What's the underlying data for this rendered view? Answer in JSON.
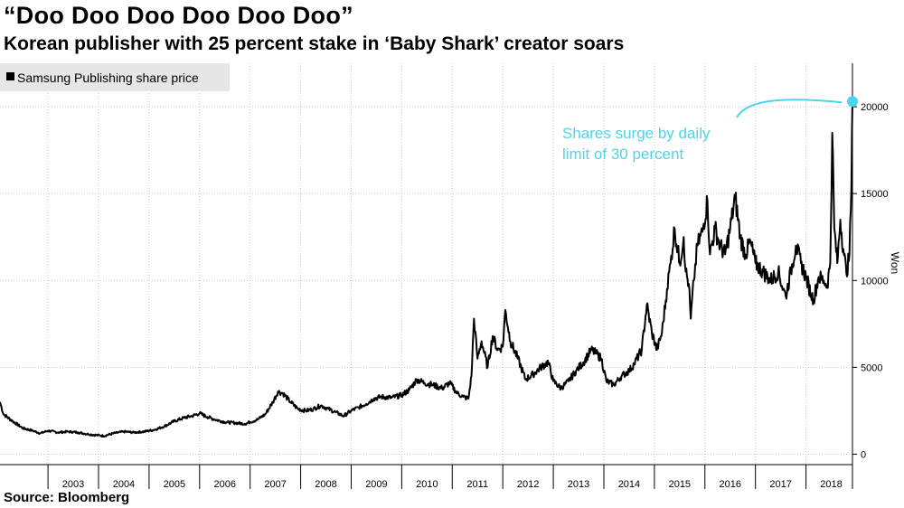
{
  "title": "“Doo Doo Doo Doo Doo Doo”",
  "subtitle": "Korean publisher with 25 percent stake in ‘Baby Shark’ creator soars",
  "source": "Source: Bloomberg",
  "colors": {
    "line": "#000000",
    "annotation": "#4fd3e6",
    "grid": "#c8c8c8",
    "legend_bg": "#e6e6e6"
  },
  "chart_data": {
    "type": "line",
    "title": "“Doo Doo Doo Doo Doo Doo”",
    "subtitle": "Korean publisher with 25 percent stake in ‘Baby Shark’ creator soars",
    "xlabel": "",
    "ylabel": "Won",
    "xlim": [
      2002.05,
      2018.92
    ],
    "ylim": [
      -600,
      22500
    ],
    "y_ticks": [
      0,
      5000,
      10000,
      15000,
      20000
    ],
    "x_tick_labels": [
      "2003",
      "2004",
      "2005",
      "2006",
      "2007",
      "2008",
      "2009",
      "2010",
      "2011",
      "2012",
      "2013",
      "2014",
      "2015",
      "2016",
      "2017",
      "2018"
    ],
    "legend": [
      "Samsung Publishing share price"
    ],
    "grid": true,
    "series": [
      {
        "name": "Samsung Publishing share price",
        "points": [
          [
            2002.05,
            3000
          ],
          [
            2002.12,
            2300
          ],
          [
            2002.3,
            1900
          ],
          [
            2002.5,
            1500
          ],
          [
            2002.7,
            1350
          ],
          [
            2002.85,
            1200
          ],
          [
            2003.0,
            1350
          ],
          [
            2003.2,
            1250
          ],
          [
            2003.4,
            1300
          ],
          [
            2003.6,
            1250
          ],
          [
            2003.8,
            1150
          ],
          [
            2003.95,
            1100
          ],
          [
            2004.1,
            1050
          ],
          [
            2004.3,
            1200
          ],
          [
            2004.5,
            1300
          ],
          [
            2004.7,
            1250
          ],
          [
            2004.9,
            1300
          ],
          [
            2005.1,
            1400
          ],
          [
            2005.3,
            1600
          ],
          [
            2005.5,
            1900
          ],
          [
            2005.7,
            2100
          ],
          [
            2005.85,
            2200
          ],
          [
            2006.0,
            2350
          ],
          [
            2006.15,
            2150
          ],
          [
            2006.3,
            2000
          ],
          [
            2006.5,
            1850
          ],
          [
            2006.7,
            1800
          ],
          [
            2006.9,
            1750
          ],
          [
            2007.0,
            1850
          ],
          [
            2007.15,
            2000
          ],
          [
            2007.3,
            2300
          ],
          [
            2007.45,
            3000
          ],
          [
            2007.55,
            3600
          ],
          [
            2007.65,
            3500
          ],
          [
            2007.8,
            3000
          ],
          [
            2007.95,
            2600
          ],
          [
            2008.1,
            2500
          ],
          [
            2008.25,
            2600
          ],
          [
            2008.4,
            2800
          ],
          [
            2008.55,
            2600
          ],
          [
            2008.7,
            2400
          ],
          [
            2008.85,
            2200
          ],
          [
            2009.0,
            2500
          ],
          [
            2009.15,
            2700
          ],
          [
            2009.3,
            2900
          ],
          [
            2009.45,
            3200
          ],
          [
            2009.6,
            3300
          ],
          [
            2009.8,
            3250
          ],
          [
            2010.0,
            3400
          ],
          [
            2010.15,
            3700
          ],
          [
            2010.3,
            4300
          ],
          [
            2010.45,
            4100
          ],
          [
            2010.6,
            4000
          ],
          [
            2010.8,
            3800
          ],
          [
            2010.95,
            4100
          ],
          [
            2011.1,
            3500
          ],
          [
            2011.22,
            3300
          ],
          [
            2011.32,
            3200
          ],
          [
            2011.38,
            4500
          ],
          [
            2011.43,
            7800
          ],
          [
            2011.5,
            5500
          ],
          [
            2011.58,
            6500
          ],
          [
            2011.7,
            5000
          ],
          [
            2011.8,
            6800
          ],
          [
            2011.9,
            6000
          ],
          [
            2012.0,
            6200
          ],
          [
            2012.05,
            8300
          ],
          [
            2012.15,
            6500
          ],
          [
            2012.3,
            5500
          ],
          [
            2012.45,
            4300
          ],
          [
            2012.6,
            4600
          ],
          [
            2012.75,
            5000
          ],
          [
            2012.9,
            5300
          ],
          [
            2013.0,
            4200
          ],
          [
            2013.15,
            3800
          ],
          [
            2013.3,
            4200
          ],
          [
            2013.45,
            4800
          ],
          [
            2013.6,
            5300
          ],
          [
            2013.75,
            6000
          ],
          [
            2013.85,
            5800
          ],
          [
            2013.95,
            5500
          ],
          [
            2014.05,
            4200
          ],
          [
            2014.2,
            4000
          ],
          [
            2014.35,
            4500
          ],
          [
            2014.5,
            4800
          ],
          [
            2014.6,
            5200
          ],
          [
            2014.75,
            6000
          ],
          [
            2014.85,
            8600
          ],
          [
            2014.95,
            7000
          ],
          [
            2015.05,
            6000
          ],
          [
            2015.15,
            7000
          ],
          [
            2015.25,
            9500
          ],
          [
            2015.32,
            11000
          ],
          [
            2015.4,
            13000
          ],
          [
            2015.5,
            11000
          ],
          [
            2015.58,
            12500
          ],
          [
            2015.62,
            10500
          ],
          [
            2015.68,
            9800
          ],
          [
            2015.72,
            7800
          ],
          [
            2015.78,
            10000
          ],
          [
            2015.85,
            12000
          ],
          [
            2015.95,
            12800
          ],
          [
            2016.05,
            14600
          ],
          [
            2016.1,
            11500
          ],
          [
            2016.2,
            13000
          ],
          [
            2016.3,
            12000
          ],
          [
            2016.4,
            11500
          ],
          [
            2016.5,
            13000
          ],
          [
            2016.6,
            14800
          ],
          [
            2016.7,
            12500
          ],
          [
            2016.8,
            11500
          ],
          [
            2016.9,
            12200
          ],
          [
            2017.0,
            11000
          ],
          [
            2017.15,
            10500
          ],
          [
            2017.3,
            10000
          ],
          [
            2017.45,
            10500
          ],
          [
            2017.55,
            9500
          ],
          [
            2017.6,
            9100
          ],
          [
            2017.7,
            10500
          ],
          [
            2017.8,
            12000
          ],
          [
            2017.9,
            11000
          ],
          [
            2018.0,
            10200
          ],
          [
            2018.1,
            9200
          ],
          [
            2018.15,
            8900
          ],
          [
            2018.25,
            10200
          ],
          [
            2018.35,
            10000
          ],
          [
            2018.42,
            9700
          ],
          [
            2018.48,
            11000
          ],
          [
            2018.52,
            18500
          ],
          [
            2018.56,
            13000
          ],
          [
            2018.62,
            11000
          ],
          [
            2018.68,
            13500
          ],
          [
            2018.74,
            11800
          ],
          [
            2018.8,
            10400
          ],
          [
            2018.86,
            11500
          ],
          [
            2018.9,
            15500
          ],
          [
            2018.92,
            20300
          ]
        ]
      }
    ],
    "annotations": [
      {
        "text_lines": [
          "Shares surge by daily",
          "limit of 30 percent"
        ],
        "point": [
          2018.92,
          20300
        ]
      }
    ]
  }
}
